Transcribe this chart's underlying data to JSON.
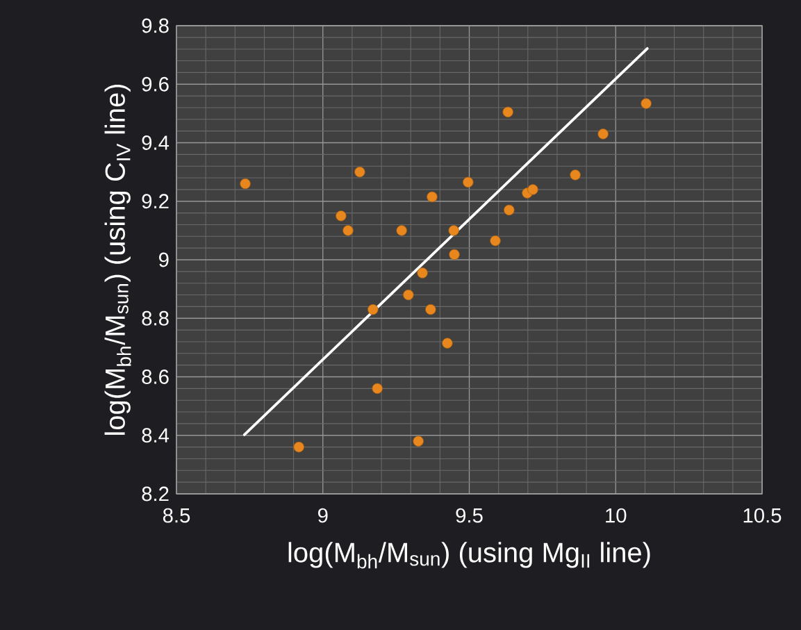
{
  "chart_data": {
    "type": "scatter",
    "xlabel": "log(M$_{bh}$/M$_{sun}$) (using Mg$_{II}$ line)",
    "ylabel": "log(M$_{bh}$/M$_{sun}$) (using C$_{IV}$ line)",
    "xlim": [
      8.5,
      10.5
    ],
    "ylim": [
      8.2,
      9.8
    ],
    "xticks": [
      8.5,
      9,
      9.5,
      10,
      10.5
    ],
    "yticks": [
      8.2,
      8.4,
      8.6,
      8.8,
      9,
      9.2,
      9.4,
      9.6,
      9.8
    ],
    "grid": true,
    "series": [
      {
        "color": "#e8871e",
        "marker": "circle",
        "x": [
          8.735,
          8.918,
          9.062,
          9.086,
          9.126,
          9.171,
          9.186,
          9.269,
          9.292,
          9.326,
          9.34,
          9.368,
          9.373,
          9.425,
          9.447,
          9.449,
          9.496,
          9.589,
          9.632,
          9.636,
          9.698,
          9.717,
          9.862,
          9.957,
          10.104
        ],
        "values": [
          9.26,
          8.36,
          9.15,
          9.1,
          9.3,
          8.83,
          8.56,
          9.1,
          8.88,
          8.38,
          8.955,
          8.83,
          9.215,
          8.715,
          9.1,
          9.018,
          9.265,
          9.065,
          9.505,
          9.17,
          9.228,
          9.24,
          9.29,
          9.43,
          9.534
        ]
      },
      {
        "type": "line",
        "color": "#ffffff",
        "marker": "none",
        "x": [
          8.732,
          10.108
        ],
        "values": [
          8.402,
          9.722
        ]
      }
    ]
  }
}
